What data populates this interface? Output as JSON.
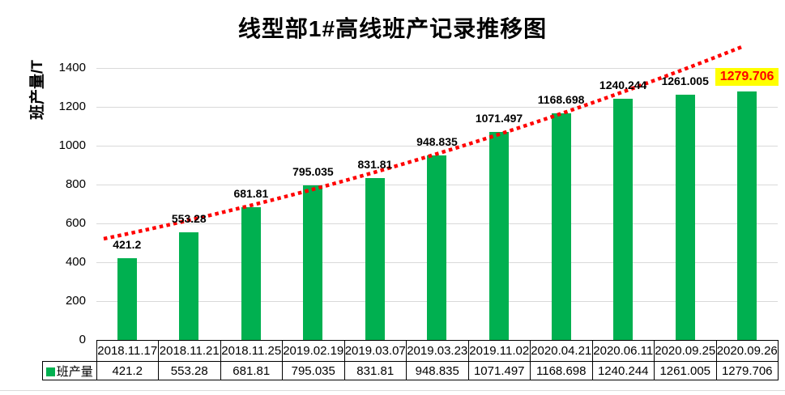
{
  "chart_data": {
    "type": "bar",
    "title": "线型部1#高线班产记录推移图",
    "ylabel": "班产量/T",
    "categories": [
      "2018.11.17",
      "2018.11.21",
      "2018.11.25",
      "2019.02.19",
      "2019.03.07",
      "2019.03.23",
      "2019.11.02",
      "2020.04.21",
      "2020.06.11",
      "2020.09.25",
      "2020.09.26"
    ],
    "series": [
      {
        "name": "班产量",
        "values": [
          421.2,
          553.28,
          681.81,
          795.035,
          831.81,
          948.835,
          1071.497,
          1168.698,
          1240.244,
          1261.005,
          1279.706
        ]
      }
    ],
    "point_labels": [
      "421.2",
      "553.28",
      "681.81",
      "795.035",
      "831.81",
      "948.835",
      "1071.497",
      "1168.698",
      "1240.244",
      "1261.005",
      "1279.706"
    ],
    "yticks": [
      0,
      200,
      400,
      600,
      800,
      1000,
      1200,
      1400
    ],
    "ylim": [
      0,
      1500
    ],
    "grid": true,
    "legend_position": "bottom-left-of-table",
    "trendline": {
      "style": "dotted",
      "color": "#FF0000"
    },
    "highlighted_point": {
      "index": 10,
      "label": "1279.706",
      "text_color": "#FF0000",
      "bg_color": "#FFFF00"
    }
  },
  "legend": {
    "series_label": "班产量"
  },
  "colors": {
    "bar": "#00B050",
    "gridline": "#D9D9D9",
    "trend": "#FF0000",
    "highlight_bg": "#FFFF00",
    "highlight_text": "#FF0000",
    "table_border": "#000000"
  }
}
